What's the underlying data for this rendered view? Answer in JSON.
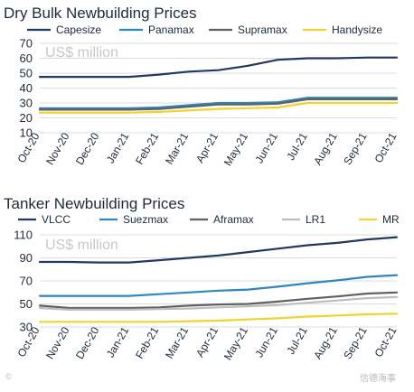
{
  "chart_data": [
    {
      "type": "line",
      "title": "Dry Bulk Newbuilding Prices",
      "unit_label": "US$ million",
      "ylim": [
        10,
        70
      ],
      "yticks": [
        10,
        20,
        30,
        40,
        50,
        60,
        70
      ],
      "grid": "horizontal",
      "legend": "top",
      "x": [
        "Oct-20",
        "Nov-20",
        "Dec-20",
        "Jan-21",
        "Feb-21",
        "Mar-21",
        "Apr-21",
        "May-21",
        "Jun-21",
        "Jul-21",
        "Aug-21",
        "Sep-21",
        "Oct-21"
      ],
      "series": [
        {
          "name": "Capesize",
          "color": "#1f3864",
          "values": [
            47.5,
            47.5,
            47.5,
            47.5,
            49,
            51,
            52,
            55,
            59,
            60,
            60,
            60.5,
            60.5
          ]
        },
        {
          "name": "Panamax",
          "color": "#2e86c1",
          "values": [
            26.5,
            26.5,
            26.5,
            26.5,
            27,
            28.5,
            30,
            30,
            30.5,
            33.5,
            33.5,
            33.5,
            33.5
          ]
        },
        {
          "name": "Supramax",
          "color": "#606060",
          "values": [
            25.5,
            25.5,
            25.5,
            25.5,
            26,
            27.5,
            29,
            29,
            29.5,
            32.5,
            32.5,
            32.5,
            32.5
          ]
        },
        {
          "name": "Handysize",
          "color": "#f2d22e",
          "values": [
            23.5,
            23.5,
            23.5,
            23.5,
            24,
            25,
            26,
            26.5,
            27,
            30,
            30,
            30,
            30
          ]
        }
      ]
    },
    {
      "type": "line",
      "title": "Tanker Newbuilding Prices",
      "unit_label": "US$ million",
      "ylim": [
        30,
        110
      ],
      "yticks": [
        30,
        50,
        70,
        90,
        110
      ],
      "grid": "horizontal",
      "legend": "top",
      "x": [
        "Oct-20",
        "Nov-20",
        "Dec-20",
        "Jan-21",
        "Feb-21",
        "Mar-21",
        "Apr-21",
        "May-21",
        "Jun-21",
        "Jul-21",
        "Aug-21",
        "Sep-21",
        "Oct-21"
      ],
      "series": [
        {
          "name": "VLCC",
          "color": "#1f3864",
          "values": [
            86.5,
            86.5,
            86,
            86,
            88,
            90,
            92,
            95,
            98,
            101,
            103,
            106,
            108
          ]
        },
        {
          "name": "Suezmax",
          "color": "#2e86c1",
          "values": [
            57,
            57,
            57,
            57,
            58.5,
            60,
            61.5,
            62.5,
            65,
            68,
            70.5,
            73.5,
            75
          ]
        },
        {
          "name": "Aframax",
          "color": "#606060",
          "values": [
            48.5,
            46.5,
            46.5,
            46.5,
            47,
            48.5,
            49.5,
            50,
            52,
            54.5,
            56.5,
            59,
            60
          ]
        },
        {
          "name": "LR1",
          "color": "#bdbdbd",
          "values": [
            46.5,
            45,
            45,
            45,
            45.5,
            46,
            47,
            48,
            49,
            51,
            53,
            55,
            56
          ]
        },
        {
          "name": "MR",
          "color": "#f2d22e",
          "values": [
            34.5,
            34.5,
            34.5,
            34.5,
            34.5,
            35,
            35.5,
            36.5,
            37.5,
            39,
            40,
            41,
            41.5
          ]
        }
      ]
    }
  ],
  "watermarks": {
    "left": "©",
    "right": "信德海事"
  }
}
